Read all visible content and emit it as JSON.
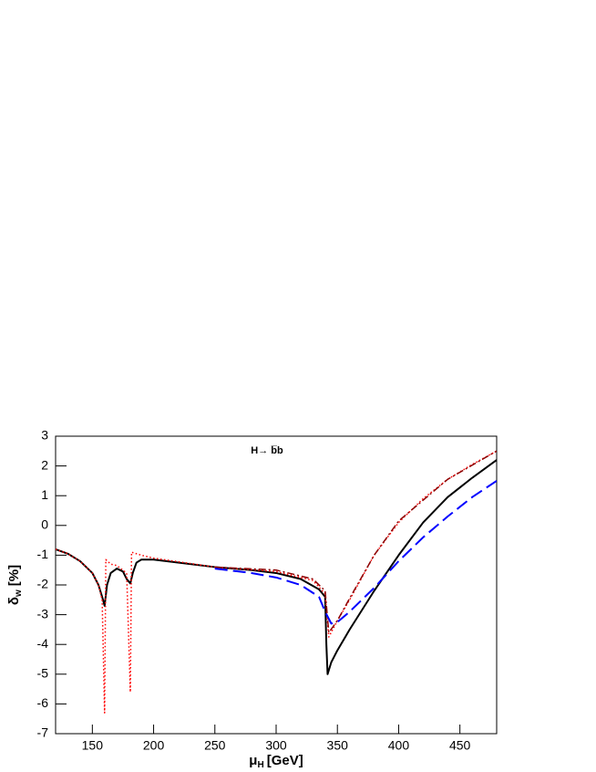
{
  "chart_data": {
    "type": "line",
    "title": "H→ b̅b",
    "x_label": {
      "symbol": "μ",
      "sub": "H",
      "unit": "[GeV]"
    },
    "y_label": {
      "symbol": "δ",
      "sub": "w",
      "unit": "[%]"
    },
    "xlim": [
      120,
      480
    ],
    "xticks": [
      150,
      200,
      250,
      300,
      350,
      400,
      450
    ],
    "ylim": [
      -7,
      3
    ],
    "yticks": [
      -7,
      -6,
      -5,
      -4,
      -3,
      -2,
      -1,
      0,
      1,
      2,
      3
    ],
    "series": [
      {
        "color": "#000000",
        "dash": "solid",
        "width": 2,
        "x": [
          120,
          130,
          140,
          150,
          155,
          158,
          160,
          162,
          165,
          170,
          175,
          178,
          181,
          183,
          186,
          190,
          200,
          220,
          250,
          280,
          300,
          320,
          335,
          340,
          341,
          342,
          345,
          350,
          360,
          380,
          400,
          420,
          440,
          460,
          480
        ],
        "values": [
          -0.8,
          -0.95,
          -1.2,
          -1.6,
          -2.0,
          -2.4,
          -2.7,
          -2.0,
          -1.6,
          -1.45,
          -1.55,
          -1.8,
          -1.95,
          -1.6,
          -1.25,
          -1.15,
          -1.15,
          -1.25,
          -1.4,
          -1.5,
          -1.6,
          -1.8,
          -2.15,
          -2.4,
          -4.0,
          -5.0,
          -4.6,
          -4.2,
          -3.5,
          -2.2,
          -1.0,
          0.1,
          0.95,
          1.6,
          2.2
        ]
      },
      {
        "color": "#ff0000",
        "dash": "dotted",
        "width": 1.5,
        "x": [
          120,
          130,
          140,
          150,
          155,
          158,
          160,
          161,
          165,
          170,
          178,
          181,
          182,
          190,
          200,
          250,
          300,
          330,
          340,
          343,
          350,
          360,
          380,
          400,
          420,
          440,
          460,
          480
        ],
        "values": [
          -0.8,
          -0.95,
          -1.2,
          -1.6,
          -2.0,
          -2.5,
          -6.3,
          -1.15,
          -1.3,
          -1.35,
          -1.6,
          -5.6,
          -0.9,
          -1.0,
          -1.1,
          -1.4,
          -1.55,
          -1.85,
          -2.3,
          -3.75,
          -3.2,
          -2.5,
          -1.0,
          0.1,
          0.9,
          1.55,
          2.05,
          2.5
        ]
      },
      {
        "color": "#8b0000",
        "dash": "dashdot",
        "width": 1.5,
        "x": [
          250,
          300,
          330,
          340,
          343,
          350,
          360,
          380,
          400,
          440,
          480
        ],
        "values": [
          -1.4,
          -1.5,
          -1.8,
          -2.2,
          -3.6,
          -3.2,
          -2.45,
          -1.0,
          0.15,
          1.55,
          2.5
        ]
      },
      {
        "color": "#0000ff",
        "dash": "dashed",
        "width": 2,
        "x": [
          250,
          280,
          300,
          320,
          335,
          340,
          345,
          350,
          360,
          380,
          400,
          420,
          440,
          460,
          480
        ],
        "values": [
          -1.45,
          -1.6,
          -1.75,
          -2.0,
          -2.4,
          -2.9,
          -3.3,
          -3.25,
          -2.9,
          -2.1,
          -1.2,
          -0.4,
          0.3,
          0.95,
          1.5
        ]
      }
    ]
  }
}
